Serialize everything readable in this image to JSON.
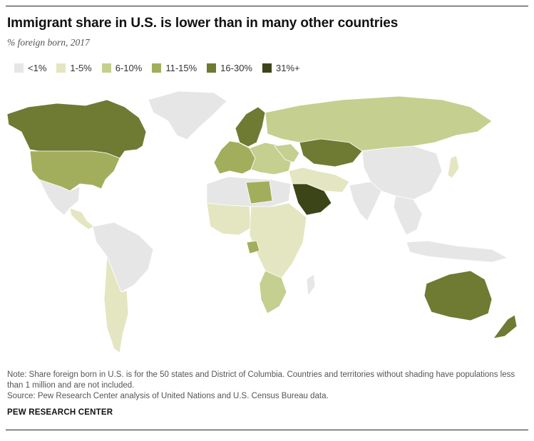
{
  "title": "Immigrant share in U.S. is lower than in many other countries",
  "subtitle": "% foreign born, 2017",
  "legend": [
    {
      "label": "<1%",
      "color": "#e6e6e6"
    },
    {
      "label": "1-5%",
      "color": "#e3e6c0"
    },
    {
      "label": "6-10%",
      "color": "#c5cf8f"
    },
    {
      "label": "11-15%",
      "color": "#a2ae5c"
    },
    {
      "label": "16-30%",
      "color": "#6f7a33"
    },
    {
      "label": "31%+",
      "color": "#3c4518"
    }
  ],
  "note": "Note: Share foreign born in U.S. is for the 50 states and District of Columbia. Countries and territories without shading have populations less than 1 million and are not included.",
  "source": "Source: Pew Research Center analysis of United Nations and U.S. Census Bureau data.",
  "brand": "PEW RESEARCH CENTER",
  "regions": [
    {
      "name": "canada",
      "category": "16-30%"
    },
    {
      "name": "united-states",
      "category": "11-15%"
    },
    {
      "name": "greenland",
      "category": "<1%"
    },
    {
      "name": "mexico",
      "category": "<1%"
    },
    {
      "name": "central-america",
      "category": "1-5%"
    },
    {
      "name": "south-america",
      "category": "<1%"
    },
    {
      "name": "argentina-chile",
      "category": "1-5%"
    },
    {
      "name": "russia",
      "category": "6-10%"
    },
    {
      "name": "scandinavia",
      "category": "16-30%"
    },
    {
      "name": "western-europe",
      "category": "11-15%"
    },
    {
      "name": "eastern-europe",
      "category": "6-10%"
    },
    {
      "name": "kazakhstan",
      "category": "16-30%"
    },
    {
      "name": "saudi-arabia",
      "category": "31%+"
    },
    {
      "name": "middle-east",
      "category": "1-5%"
    },
    {
      "name": "north-africa",
      "category": "<1%"
    },
    {
      "name": "libya",
      "category": "11-15%"
    },
    {
      "name": "west-africa",
      "category": "1-5%"
    },
    {
      "name": "gabon",
      "category": "11-15%"
    },
    {
      "name": "central-africa",
      "category": "1-5%"
    },
    {
      "name": "southern-africa",
      "category": "6-10%"
    },
    {
      "name": "madagascar",
      "category": "<1%"
    },
    {
      "name": "china",
      "category": "<1%"
    },
    {
      "name": "india",
      "category": "<1%"
    },
    {
      "name": "southeast-asia",
      "category": "<1%"
    },
    {
      "name": "indonesia",
      "category": "<1%"
    },
    {
      "name": "japan",
      "category": "1-5%"
    },
    {
      "name": "australia",
      "category": "16-30%"
    },
    {
      "name": "new-zealand",
      "category": "16-30%"
    },
    {
      "name": "ukraine",
      "category": "6-10%"
    }
  ]
}
